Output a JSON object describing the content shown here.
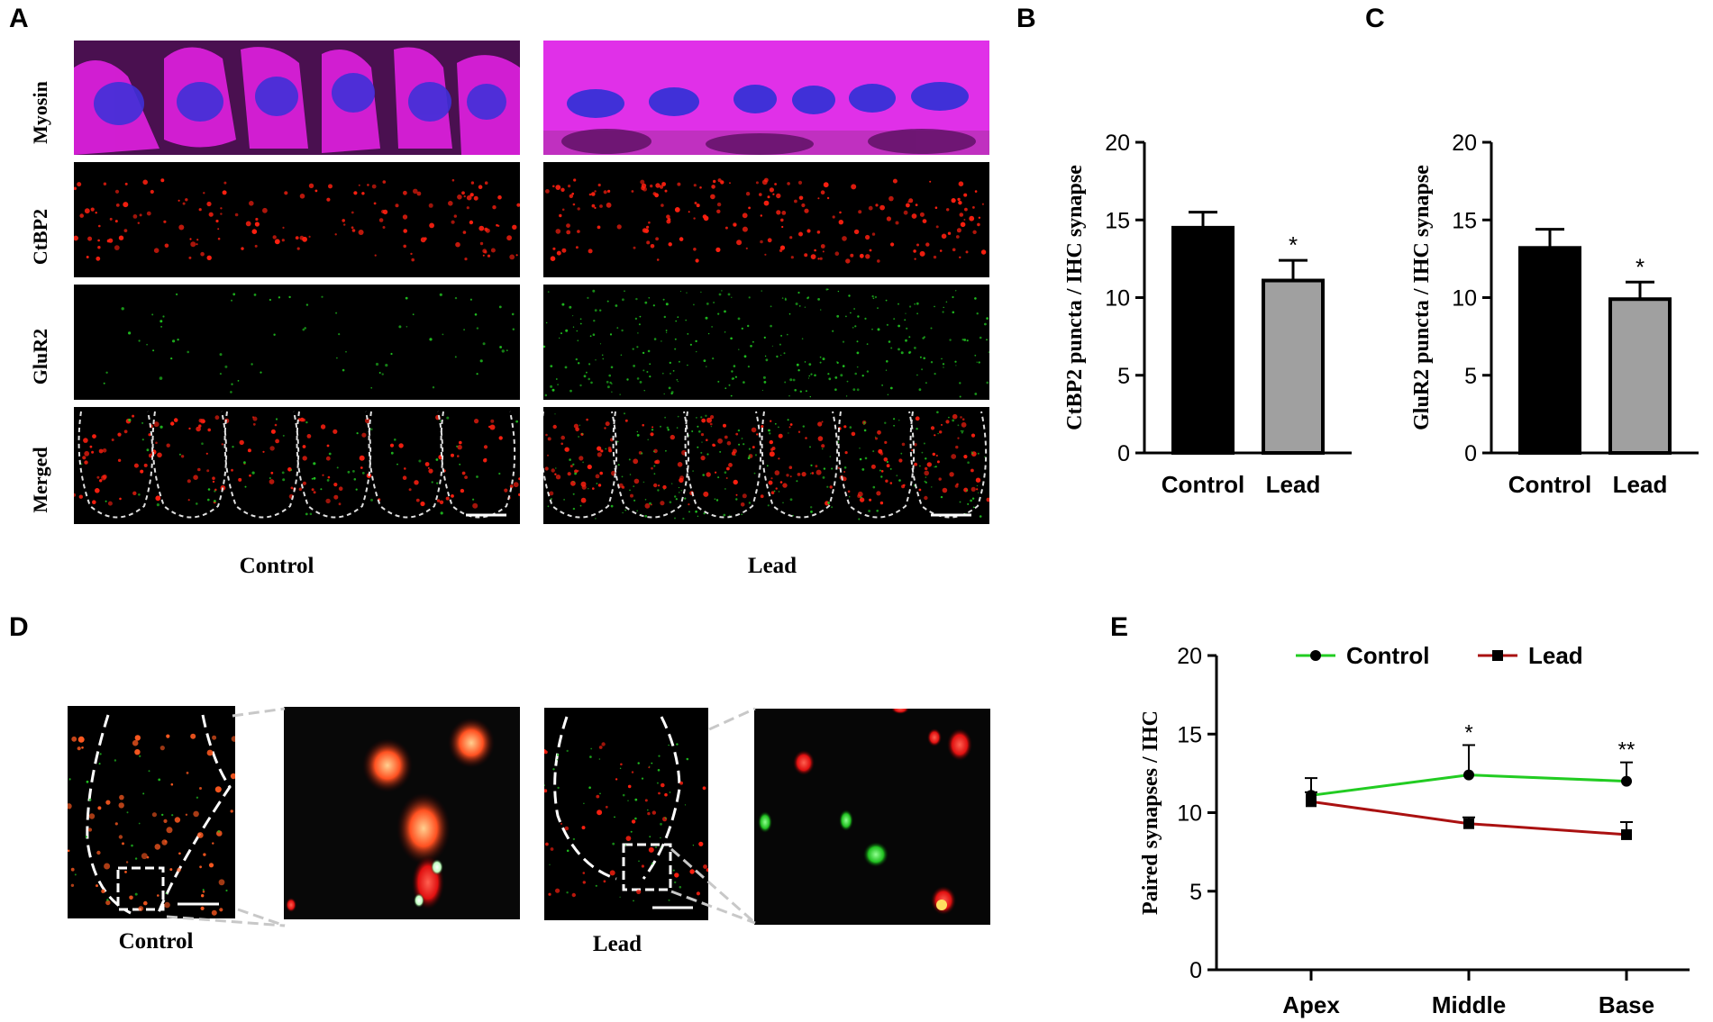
{
  "panel_letters": {
    "a": "A",
    "b": "B",
    "c": "C",
    "d": "D",
    "e": "E"
  },
  "panel_a": {
    "row_labels": [
      "Myosin",
      "CtBP2",
      "GluR2",
      "Merged"
    ],
    "col_labels": [
      "Control",
      "Lead"
    ]
  },
  "panel_d": {
    "labels": [
      "Control",
      "Lead"
    ]
  },
  "colors": {
    "myosin": "#e020e0",
    "nucleus": "#3a2ad8",
    "ctbp2": "#ff2010",
    "glur2": "#20c020",
    "control_bar": "#000000",
    "lead_bar": "#a0a0a0",
    "control_line": "#22cc22",
    "lead_line": "#aa1111"
  },
  "chart_data": [
    {
      "type": "bar",
      "panel": "B",
      "categories": [
        "Control",
        "Lead"
      ],
      "values": [
        14.5,
        11.1
      ],
      "errors": [
        1.0,
        1.3
      ],
      "significance": [
        "",
        "*"
      ],
      "ylabel": "CtBP2 puncta / IHC synapse",
      "ylim": [
        0,
        20
      ],
      "yticks": [
        0,
        5,
        10,
        15,
        20
      ]
    },
    {
      "type": "bar",
      "panel": "C",
      "categories": [
        "Control",
        "Lead"
      ],
      "values": [
        13.2,
        9.9
      ],
      "errors": [
        1.2,
        1.1
      ],
      "significance": [
        "",
        "*"
      ],
      "ylabel": "GluR2 puncta / IHC synapse",
      "ylim": [
        0,
        20
      ],
      "yticks": [
        0,
        5,
        10,
        15,
        20
      ]
    },
    {
      "type": "line",
      "panel": "E",
      "categories": [
        "Apex",
        "Middle",
        "Base"
      ],
      "series": [
        {
          "name": "Control",
          "values": [
            11.1,
            12.4,
            12.0
          ],
          "errors": [
            1.1,
            1.9,
            1.2
          ]
        },
        {
          "name": "Lead",
          "values": [
            10.7,
            9.3,
            8.6
          ],
          "errors": [
            0.6,
            0.4,
            0.8
          ]
        }
      ],
      "significance": [
        "",
        "*",
        "**"
      ],
      "ylabel": "Paired synapses / IHC",
      "ylim": [
        0,
        20
      ],
      "yticks": [
        0,
        5,
        10,
        15,
        20
      ],
      "legend": "top"
    }
  ]
}
